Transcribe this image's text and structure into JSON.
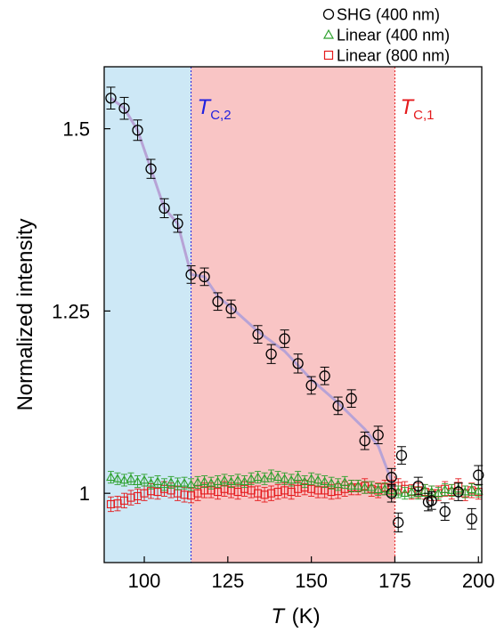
{
  "chart_data": {
    "type": "scatter",
    "title": "",
    "xlabel": "T",
    "xlabel_unit": "(K)",
    "ylabel": "Normalized intensity",
    "xlim": [
      88,
      201
    ],
    "ylim": [
      0.905,
      1.585
    ],
    "x_ticks": [
      100,
      125,
      150,
      175,
      200
    ],
    "y_ticks": [
      1,
      1.25,
      1.5
    ],
    "x_tick_labels": [
      "100",
      "125",
      "150",
      "175",
      "200"
    ],
    "y_tick_labels": [
      "1",
      "1.25",
      "1.5"
    ],
    "grid": false,
    "legend_position": "top-right",
    "colors": {
      "shg": "#000000",
      "linear400": "#2ca02c",
      "linear800": "#e41a1c",
      "trend": "#b7a3d6",
      "region_low": "#cde8f6",
      "region_mid": "#f9c5c5",
      "tc2_line": "#2b2bdd",
      "tc1_line": "#e41a1c",
      "tc2_label": "#2020e0",
      "tc1_label": "#e41a1c"
    },
    "regions": [
      {
        "from": 88,
        "to": 114,
        "color": "#cde8f6"
      },
      {
        "from": 114,
        "to": 175,
        "color": "#f9c5c5"
      }
    ],
    "transitions": [
      {
        "x": 114,
        "label_main": "T",
        "label_sub": "C,2",
        "color": "#2020e0"
      },
      {
        "x": 175,
        "label_main": "T",
        "label_sub": "C,1",
        "color": "#e41a1c"
      }
    ],
    "series": [
      {
        "name": "SHG (400 nm)",
        "marker": "circle",
        "color": "#000000",
        "x": [
          90,
          94,
          98,
          102,
          106,
          110,
          114,
          118,
          122,
          126,
          134,
          138,
          142,
          146,
          150,
          154,
          158,
          162,
          166,
          170,
          174,
          176,
          177,
          182,
          185,
          190,
          194,
          198,
          200,
          186,
          174
        ],
        "y": [
          1.542,
          1.528,
          1.498,
          1.445,
          1.391,
          1.37,
          1.3,
          1.297,
          1.263,
          1.253,
          1.218,
          1.191,
          1.212,
          1.178,
          1.148,
          1.161,
          1.12,
          1.13,
          1.072,
          1.08,
          1.022,
          0.96,
          1.052,
          1.01,
          0.988,
          0.975,
          1.002,
          0.965,
          1.025,
          0.99,
          1.0
        ],
        "err": [
          0.015,
          0.015,
          0.014,
          0.013,
          0.013,
          0.012,
          0.012,
          0.012,
          0.012,
          0.012,
          0.012,
          0.013,
          0.012,
          0.013,
          0.012,
          0.012,
          0.012,
          0.012,
          0.012,
          0.012,
          0.012,
          0.013,
          0.012,
          0.012,
          0.012,
          0.012,
          0.012,
          0.014,
          0.013,
          0.012,
          0.012
        ]
      },
      {
        "name": "Linear (400 nm)",
        "marker": "triangle",
        "color": "#2ca02c",
        "x": [
          90,
          92,
          94,
          96,
          98,
          100,
          102,
          104,
          106,
          108,
          110,
          112,
          114,
          116,
          118,
          120,
          122,
          124,
          126,
          128,
          130,
          132,
          134,
          136,
          138,
          140,
          142,
          144,
          146,
          148,
          150,
          152,
          154,
          156,
          158,
          160,
          162,
          164,
          166,
          168,
          170,
          172,
          174,
          176,
          178,
          180,
          182,
          184,
          186,
          188,
          190,
          192,
          194,
          196,
          198,
          200
        ],
        "y": [
          1.022,
          1.02,
          1.018,
          1.02,
          1.016,
          1.018,
          1.014,
          1.016,
          1.012,
          1.015,
          1.013,
          1.014,
          1.012,
          1.015,
          1.016,
          1.014,
          1.016,
          1.018,
          1.016,
          1.018,
          1.016,
          1.02,
          1.022,
          1.02,
          1.024,
          1.022,
          1.02,
          1.018,
          1.022,
          1.016,
          1.02,
          1.018,
          1.016,
          1.014,
          1.012,
          1.015,
          1.01,
          1.01,
          1.008,
          1.008,
          1.005,
          1.006,
          1.004,
          1.002,
          1.0,
          1.002,
          1.0,
          1.004,
          1.002,
          1.0,
          1.005,
          1.004,
          1.006,
          1.002,
          1.005,
          1.003
        ],
        "err": [
          0.008,
          0.008,
          0.008,
          0.008,
          0.008,
          0.008,
          0.008,
          0.008,
          0.008,
          0.008,
          0.008,
          0.008,
          0.008,
          0.008,
          0.008,
          0.008,
          0.008,
          0.008,
          0.008,
          0.008,
          0.008,
          0.008,
          0.008,
          0.008,
          0.008,
          0.008,
          0.008,
          0.008,
          0.008,
          0.008,
          0.008,
          0.008,
          0.008,
          0.008,
          0.008,
          0.008,
          0.008,
          0.008,
          0.008,
          0.008,
          0.008,
          0.008,
          0.008,
          0.008,
          0.008,
          0.008,
          0.008,
          0.008,
          0.008,
          0.008,
          0.008,
          0.008,
          0.008,
          0.008,
          0.008,
          0.008
        ]
      },
      {
        "name": "Linear (800 nm)",
        "marker": "square",
        "color": "#e41a1c",
        "x": [
          90,
          92,
          94,
          96,
          98,
          100,
          102,
          104,
          106,
          108,
          110,
          112,
          114,
          116,
          118,
          120,
          122,
          124,
          126,
          128,
          130,
          132,
          134,
          136,
          138,
          140,
          142,
          144,
          146,
          148,
          150,
          152,
          154,
          156,
          158,
          160,
          162,
          164,
          166,
          168,
          170,
          172,
          174,
          176,
          178,
          180,
          182,
          184,
          186,
          188,
          190,
          192,
          194,
          196,
          198,
          200
        ],
        "y": [
          0.985,
          0.986,
          0.99,
          0.994,
          0.996,
          1.0,
          1.003,
          1.002,
          1.006,
          1.004,
          1.0,
          0.998,
          0.997,
          1.0,
          1.004,
          1.004,
          1.002,
          1.006,
          1.004,
          1.002,
          1.006,
          1.004,
          1.0,
          0.998,
          1.0,
          1.002,
          1.004,
          1.002,
          1.006,
          1.008,
          1.006,
          1.004,
          1.004,
          1.002,
          1.003,
          1.006,
          1.008,
          1.008,
          1.01,
          1.006,
          1.004,
          1.008,
          1.008,
          1.01,
          1.006,
          1.002,
          1.004,
          1.002,
          1.0,
          1.0,
          1.006,
          1.002,
          1.01,
          1.0,
          1.004,
          1.002
        ],
        "err": [
          0.01,
          0.01,
          0.01,
          0.01,
          0.01,
          0.01,
          0.01,
          0.01,
          0.01,
          0.01,
          0.01,
          0.01,
          0.01,
          0.01,
          0.01,
          0.01,
          0.01,
          0.01,
          0.01,
          0.01,
          0.01,
          0.01,
          0.01,
          0.01,
          0.01,
          0.01,
          0.01,
          0.01,
          0.01,
          0.01,
          0.01,
          0.01,
          0.01,
          0.01,
          0.01,
          0.01,
          0.01,
          0.01,
          0.01,
          0.01,
          0.01,
          0.01,
          0.01,
          0.01,
          0.01,
          0.01,
          0.01,
          0.01,
          0.01,
          0.01,
          0.01,
          0.01,
          0.01,
          0.01,
          0.01,
          0.01
        ]
      }
    ],
    "trend_line": {
      "x": [
        90,
        94,
        98,
        102,
        106,
        110,
        114,
        118,
        122,
        126,
        134,
        142,
        150,
        158,
        166,
        170,
        175
      ],
      "y": [
        1.542,
        1.528,
        1.498,
        1.445,
        1.391,
        1.37,
        1.3,
        1.297,
        1.27,
        1.255,
        1.222,
        1.195,
        1.156,
        1.124,
        1.088,
        1.065,
        1.005
      ]
    }
  }
}
